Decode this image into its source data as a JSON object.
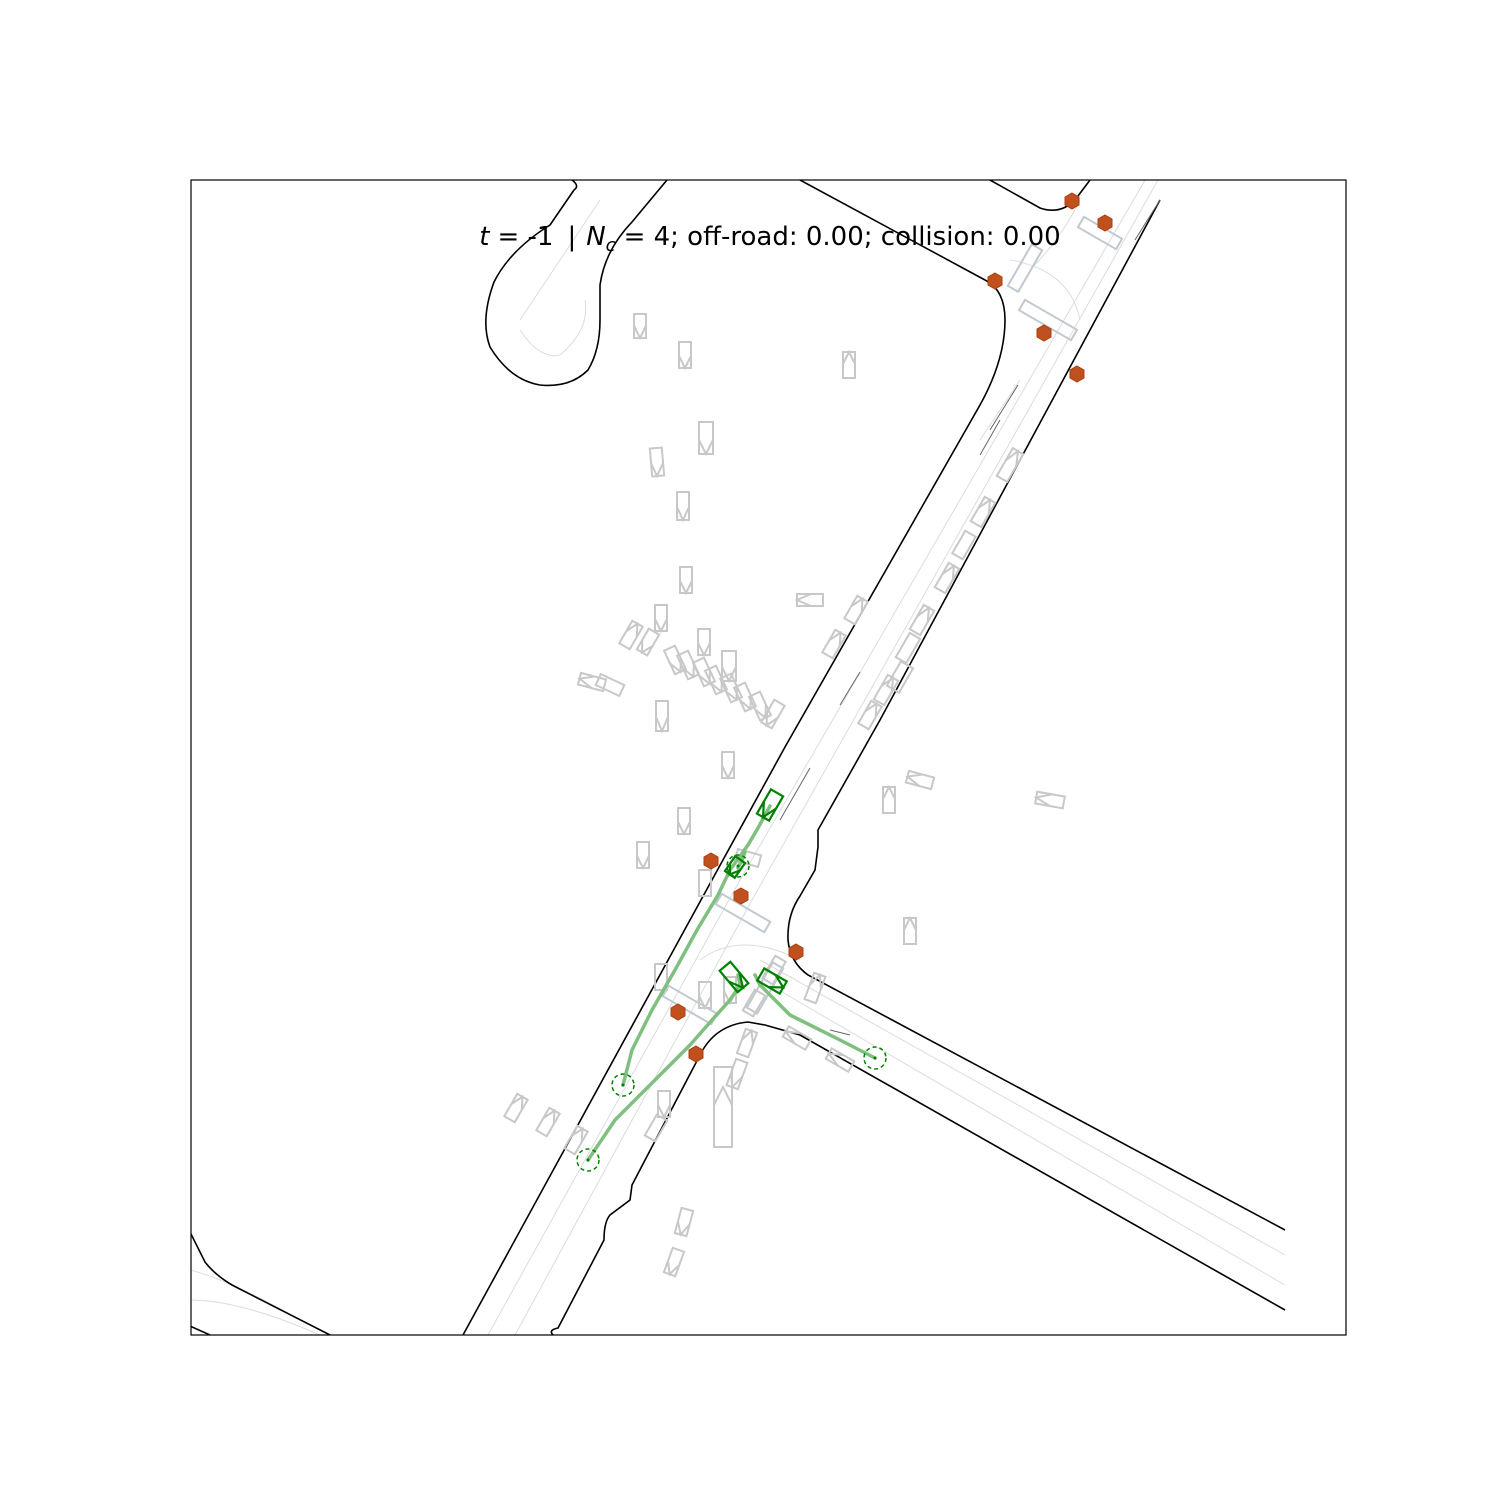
{
  "title": {
    "t_symbol": "t",
    "t_value": "= -1",
    "separator": "|",
    "nc_symbol": "N",
    "nc_subscript": "c",
    "nc_value": "= 4; off-road: 0.00; collision: 0.00"
  },
  "colors": {
    "road_edge": "#000000",
    "lane_line": "#d9d9d9",
    "crosswalk": "#c0c8d0",
    "agent_box": "#c8c8c8",
    "controlled_agent": "#008000",
    "trajectory": "#7fbf7f",
    "stop_sign": "#c0501e"
  },
  "icons": {
    "stop_sign": "hexagon-icon",
    "goal": "dashed-circle-icon"
  },
  "scene": {
    "controlled_agents": 4,
    "off_road": 0.0,
    "collision": 0.0
  }
}
